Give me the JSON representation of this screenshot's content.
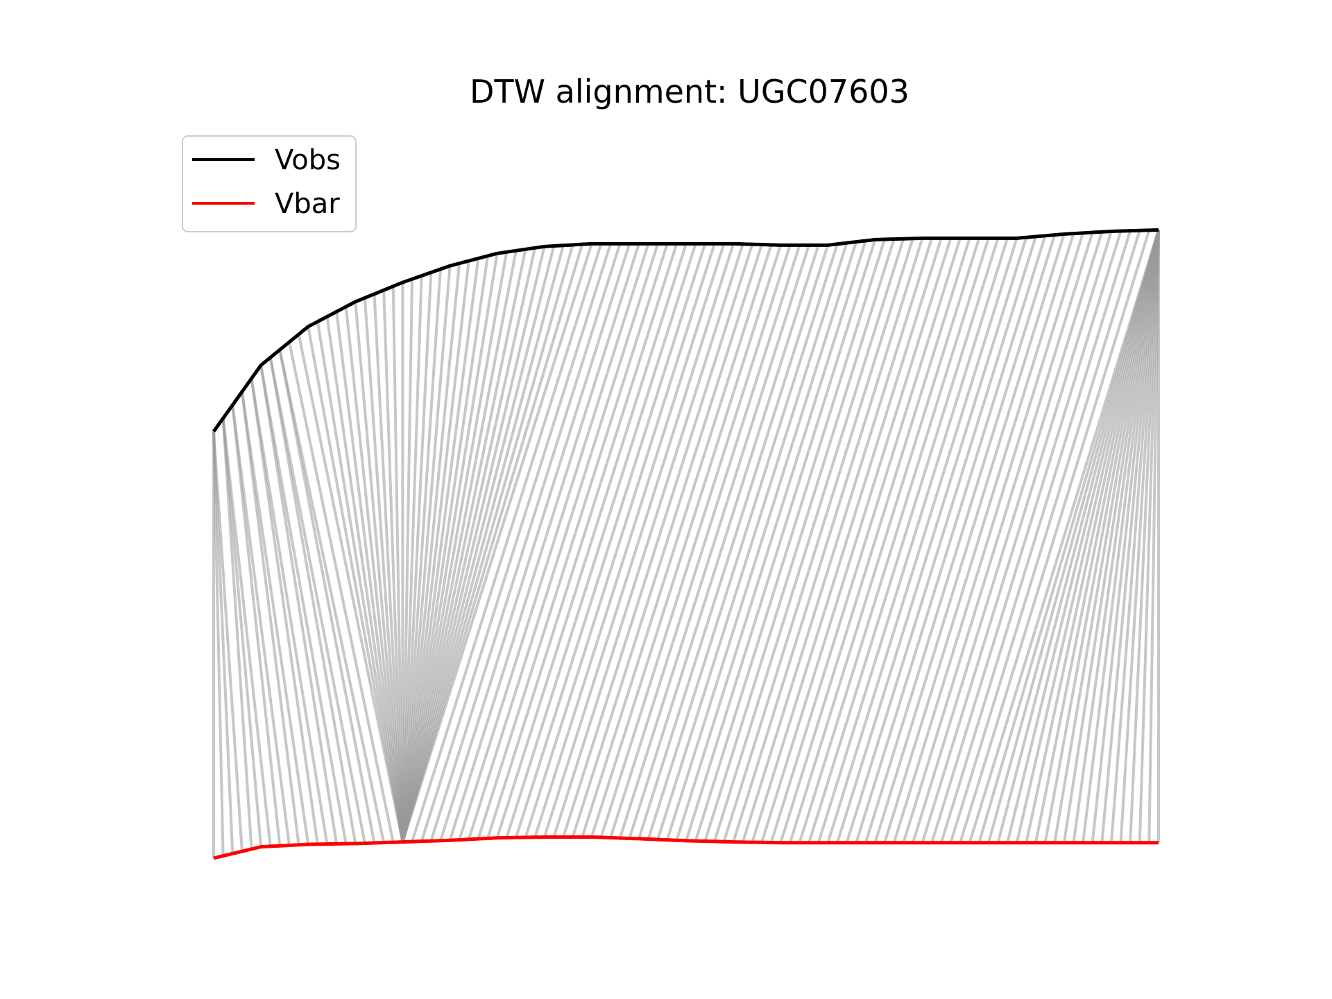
{
  "chart_data": {
    "type": "line",
    "title": "DTW alignment: UGC07603",
    "xlabel": "",
    "ylabel": "",
    "axes_visible": false,
    "grid": false,
    "legend_placement": "upper-left",
    "x": [
      0,
      5,
      10,
      15,
      20,
      25,
      30,
      35,
      40,
      45,
      50,
      55,
      60,
      65,
      70,
      75,
      80,
      85,
      90,
      95,
      100
    ],
    "series": [
      {
        "name": "Vobs",
        "color": "#000000",
        "values": [
          0.0,
          0.24,
          0.38,
          0.47,
          0.54,
          0.6,
          0.645,
          0.67,
          0.68,
          0.68,
          0.68,
          0.68,
          0.675,
          0.675,
          0.695,
          0.7,
          0.7,
          0.7,
          0.715,
          0.725,
          0.73
        ]
      },
      {
        "name": "Vbar",
        "color": "#ff0000",
        "values": [
          0.0,
          0.14,
          0.17,
          0.18,
          0.2,
          0.22,
          0.25,
          0.26,
          0.26,
          0.24,
          0.215,
          0.2,
          0.19,
          0.19,
          0.19,
          0.19,
          0.19,
          0.19,
          0.19,
          0.19,
          0.19
        ]
      }
    ],
    "alignment_color": "#999999",
    "warping_path": [
      [
        0,
        0
      ],
      [
        0,
        1
      ],
      [
        0,
        2
      ],
      [
        0,
        3
      ],
      [
        1,
        4
      ],
      [
        1,
        5
      ],
      [
        1,
        6
      ],
      [
        2,
        7
      ],
      [
        2,
        8
      ],
      [
        3,
        9
      ],
      [
        3,
        10
      ],
      [
        4,
        11
      ],
      [
        4,
        12
      ],
      [
        5,
        13
      ],
      [
        5,
        14
      ],
      [
        6,
        15
      ],
      [
        6,
        16
      ],
      [
        7,
        17
      ],
      [
        7,
        18
      ],
      [
        8,
        19
      ],
      [
        9,
        20
      ],
      [
        10,
        20
      ],
      [
        11,
        20
      ],
      [
        12,
        20
      ],
      [
        13,
        20
      ],
      [
        14,
        20
      ],
      [
        15,
        20
      ],
      [
        16,
        20
      ],
      [
        17,
        20
      ],
      [
        18,
        20
      ],
      [
        19,
        20
      ],
      [
        20,
        20
      ],
      [
        21,
        20
      ],
      [
        22,
        20
      ],
      [
        23,
        20
      ],
      [
        24,
        20
      ],
      [
        25,
        20
      ],
      [
        26,
        20
      ],
      [
        27,
        20
      ],
      [
        28,
        20
      ],
      [
        29,
        20
      ],
      [
        30,
        20
      ],
      [
        31,
        20
      ],
      [
        32,
        20
      ],
      [
        33,
        20
      ],
      [
        34,
        20
      ],
      [
        35,
        20
      ],
      [
        36,
        20
      ],
      [
        37,
        20
      ],
      [
        38,
        20
      ],
      [
        39,
        20
      ],
      [
        40,
        20
      ],
      [
        41,
        21
      ],
      [
        42,
        22
      ],
      [
        43,
        23
      ],
      [
        44,
        24
      ],
      [
        45,
        25
      ],
      [
        46,
        26
      ],
      [
        47,
        27
      ],
      [
        48,
        28
      ],
      [
        49,
        29
      ],
      [
        50,
        30
      ],
      [
        51,
        31
      ],
      [
        52,
        32
      ],
      [
        53,
        33
      ],
      [
        54,
        34
      ],
      [
        55,
        35
      ],
      [
        56,
        36
      ],
      [
        57,
        37
      ],
      [
        58,
        38
      ],
      [
        59,
        39
      ],
      [
        60,
        40
      ],
      [
        61,
        41
      ],
      [
        62,
        42
      ],
      [
        63,
        43
      ],
      [
        64,
        44
      ],
      [
        65,
        45
      ],
      [
        66,
        46
      ],
      [
        67,
        47
      ],
      [
        68,
        48
      ],
      [
        69,
        49
      ],
      [
        70,
        50
      ],
      [
        71,
        51
      ],
      [
        72,
        52
      ],
      [
        73,
        53
      ],
      [
        74,
        54
      ],
      [
        75,
        55
      ],
      [
        76,
        56
      ],
      [
        77,
        57
      ],
      [
        78,
        58
      ],
      [
        79,
        59
      ],
      [
        80,
        60
      ],
      [
        81,
        61
      ],
      [
        82,
        62
      ],
      [
        83,
        63
      ],
      [
        84,
        64
      ],
      [
        85,
        65
      ],
      [
        86,
        66
      ],
      [
        87,
        67
      ],
      [
        88,
        68
      ],
      [
        89,
        69
      ],
      [
        90,
        70
      ],
      [
        91,
        71
      ],
      [
        92,
        72
      ],
      [
        93,
        73
      ],
      [
        94,
        74
      ],
      [
        95,
        75
      ],
      [
        96,
        76
      ],
      [
        97,
        77
      ],
      [
        98,
        78
      ],
      [
        99,
        79
      ],
      [
        100,
        80
      ],
      [
        100,
        81
      ],
      [
        100,
        82
      ],
      [
        100,
        83
      ],
      [
        100,
        84
      ],
      [
        100,
        85
      ],
      [
        100,
        86
      ],
      [
        100,
        87
      ],
      [
        100,
        88
      ],
      [
        100,
        89
      ],
      [
        100,
        90
      ],
      [
        100,
        91
      ],
      [
        100,
        92
      ],
      [
        100,
        93
      ],
      [
        100,
        94
      ],
      [
        100,
        95
      ],
      [
        100,
        96
      ],
      [
        100,
        97
      ],
      [
        100,
        98
      ],
      [
        100,
        99
      ],
      [
        100,
        100
      ]
    ]
  }
}
